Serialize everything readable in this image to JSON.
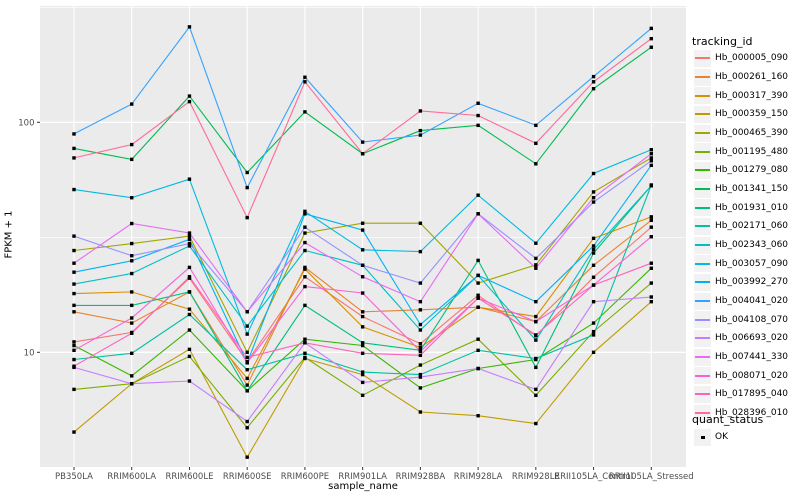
{
  "chart_data": {
    "type": "line",
    "title": "",
    "xlabel": "sample_name",
    "ylabel": "FPKM + 1",
    "y_scale": "log10",
    "y_ticks": [
      10,
      100
    ],
    "y_minor_gridlines": [
      31.62,
      316.23
    ],
    "y_range_approx": [
      3.16,
      316
    ],
    "grid": "on",
    "legend_position": "right",
    "point_marker": "small-black-square",
    "categories": [
      "PB350LA",
      "RRIM600LA",
      "RRIM600LE",
      "RRIM600SE",
      "RRIM600PE",
      "RRIM901LA",
      "RRIM928BA",
      "RRIM928LA",
      "RRIM928LE",
      "RRII105LA_Control",
      "RRII105LA_Stressed"
    ],
    "legend_title": "tracking_id",
    "series": [
      {
        "name": "Hb_000005_090",
        "color": "#F8766D",
        "values": [
          11.1,
          12.2,
          21.0,
          9.1,
          21.3,
          14.3,
          10.9,
          17.7,
          11.8,
          21.2,
          35.0
        ]
      },
      {
        "name": "Hb_000261_160",
        "color": "#EA8331",
        "values": [
          15.0,
          13.4,
          18.3,
          7.2,
          23.4,
          15.0,
          15.3,
          15.7,
          13.6,
          23.9,
          37.5
        ]
      },
      {
        "name": "Hb_000317_390",
        "color": "#D89000",
        "values": [
          18.0,
          18.3,
          15.4,
          7.7,
          23.0,
          12.9,
          10.5,
          15.7,
          14.3,
          31.3,
          38.8
        ]
      },
      {
        "name": "Hb_000359_150",
        "color": "#C09B00",
        "values": [
          4.5,
          7.3,
          10.3,
          3.5,
          9.4,
          8.0,
          5.5,
          5.3,
          4.9,
          10.0,
          16.6
        ]
      },
      {
        "name": "Hb_000465_390",
        "color": "#A3A500",
        "values": [
          27.7,
          29.7,
          32.0,
          10.0,
          33.0,
          36.4,
          36.4,
          20.0,
          24.0,
          49.8,
          70.0
        ]
      },
      {
        "name": "Hb_001195_480",
        "color": "#7CAE00",
        "values": [
          6.9,
          7.3,
          9.6,
          4.7,
          9.5,
          6.5,
          8.8,
          11.4,
          6.5,
          12.3,
          20.0
        ]
      },
      {
        "name": "Hb_001279_080",
        "color": "#39B600",
        "values": [
          10.7,
          7.9,
          12.5,
          6.8,
          11.4,
          10.7,
          7.0,
          8.5,
          9.3,
          13.4,
          23.2
        ]
      },
      {
        "name": "Hb_001341_150",
        "color": "#00BB4E",
        "values": [
          77,
          69,
          130,
          60.5,
          111,
          73,
          92,
          97,
          66,
          140,
          212
        ]
      },
      {
        "name": "Hb_001931_010",
        "color": "#00BF7D",
        "values": [
          16.0,
          16.0,
          18.3,
          6.8,
          16.0,
          11.0,
          10.2,
          25.1,
          8.6,
          27.0,
          53.0
        ]
      },
      {
        "name": "Hb_002171_060",
        "color": "#00C1A3",
        "values": [
          9.3,
          9.9,
          14.6,
          8.4,
          9.9,
          8.2,
          8.0,
          10.2,
          9.4,
          11.9,
          53.4
        ]
      },
      {
        "name": "Hb_002343_060",
        "color": "#00BFC4",
        "values": [
          19.8,
          22.0,
          29.0,
          13.0,
          27.7,
          23.9,
          12.5,
          21.6,
          11.3,
          28.0,
          53.0
        ]
      },
      {
        "name": "Hb_003057_090",
        "color": "#00BAE0",
        "values": [
          51,
          47,
          56.6,
          12.0,
          41,
          27.9,
          27.4,
          48.2,
          29.8,
          59.9,
          76
        ]
      },
      {
        "name": "Hb_003992_270",
        "color": "#00B0F6",
        "values": [
          22.3,
          25.0,
          31.0,
          9.0,
          40.0,
          34.0,
          13.2,
          21.6,
          16.6,
          29.0,
          65.0
        ]
      },
      {
        "name": "Hb_004041_020",
        "color": "#35A2FF",
        "values": [
          89,
          120,
          260,
          52,
          157,
          82,
          88,
          121,
          97,
          158,
          256
        ]
      },
      {
        "name": "Hb_004108_070",
        "color": "#9590FF",
        "values": [
          32.0,
          26.3,
          29.7,
          15.0,
          35.0,
          23.9,
          20.0,
          40.0,
          25.6,
          45.0,
          68.0
        ]
      },
      {
        "name": "Hb_006693_020",
        "color": "#C77CFF",
        "values": [
          8.6,
          7.3,
          7.5,
          5.0,
          11.0,
          7.4,
          7.8,
          8.5,
          6.9,
          16.6,
          17.4
        ]
      },
      {
        "name": "Hb_007441_330",
        "color": "#E76BF3",
        "values": [
          24.4,
          36.3,
          33.0,
          15.0,
          30.0,
          21.3,
          16.6,
          40.0,
          23.2,
          47.0,
          73.0
        ]
      },
      {
        "name": "Hb_008071_020",
        "color": "#FA62DB",
        "values": [
          10.2,
          14.1,
          23.4,
          9.0,
          19.3,
          18.1,
          10.1,
          17.2,
          13.6,
          19.6,
          31.8
        ]
      },
      {
        "name": "Hb_017895_040",
        "color": "#FF62BC",
        "values": [
          8.7,
          12.1,
          21.3,
          9.5,
          11.0,
          9.9,
          9.7,
          17.2,
          11.9,
          19.6,
          24.4
        ]
      },
      {
        "name": "Hb_028396_010",
        "color": "#FF6A98",
        "values": [
          70,
          80,
          123,
          38.5,
          150,
          73,
          112,
          107,
          81,
          150,
          231
        ]
      }
    ],
    "quant_legend": {
      "title": "quant_status",
      "items": [
        {
          "label": "OK",
          "marker": "black-square"
        }
      ]
    },
    "colors": {
      "panel_background": "#EBEBEB",
      "gridline": "#FFFFFF",
      "tick_text": "#4D4D4D",
      "tick_mark": "#333333",
      "legend_key_background": "#F2F2F2",
      "point": "#000000"
    }
  }
}
